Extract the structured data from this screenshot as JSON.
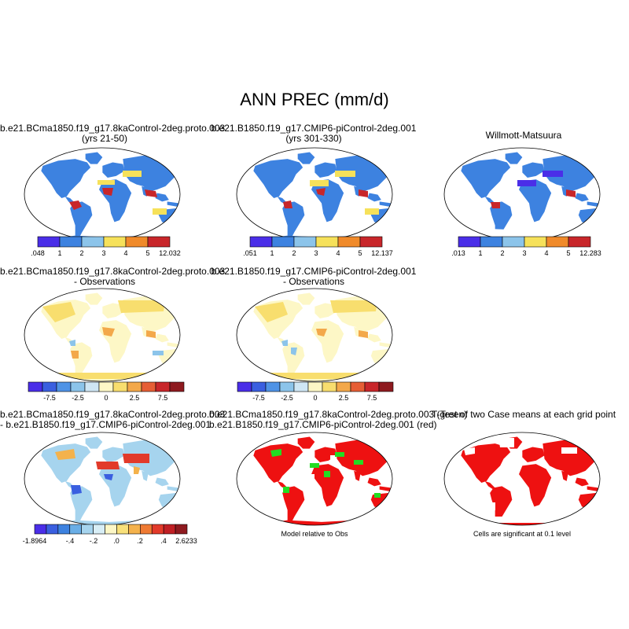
{
  "title": "ANN PREC (mm/d)",
  "panels": {
    "p1": {
      "line1": "b.e21.BCma1850.f19_g17.8kaControl-2deg.proto.003",
      "line2": "(yrs 21-50)",
      "colorbar": {
        "min_label": ".048",
        "max_label": "12.032",
        "ticks": [
          "1",
          "2",
          "3",
          "4",
          "5"
        ]
      }
    },
    "p2": {
      "line1": "b.e21.B1850.f19_g17.CMIP6-piControl-2deg.001",
      "line2": "(yrs 301-330)",
      "colorbar": {
        "min_label": ".051",
        "max_label": "12.137",
        "ticks": [
          "1",
          "2",
          "3",
          "4",
          "5"
        ]
      }
    },
    "p3": {
      "line1": "Willmott-Matsuura",
      "colorbar": {
        "min_label": ".013",
        "max_label": "12.283",
        "ticks": [
          "1",
          "2",
          "3",
          "4",
          "5"
        ]
      }
    },
    "p4": {
      "line1": "b.e21.BCma1850.f19_g17.8kaControl-2deg.proto.003",
      "line2": "- Observations",
      "colorbar": {
        "ticks": [
          "-7.5",
          "-2.5",
          "0",
          "2.5",
          "7.5"
        ]
      }
    },
    "p5": {
      "line1": "b.e21.B1850.f19_g17.CMIP6-piControl-2deg.001",
      "line2": "- Observations",
      "colorbar": {
        "ticks": [
          "-7.5",
          "-2.5",
          "0",
          "2.5",
          "7.5"
        ]
      }
    },
    "p6": {
      "line1": "b.e21.BCma1850.f19_g17.8kaControl-2deg.proto.003",
      "line2": "- b.e21.B1850.f19_g17.CMIP6-piControl-2deg.001",
      "colorbar": {
        "min_label": "-1.8964",
        "max_label": "2.6233",
        "ticks": [
          "-.4",
          "-.2",
          ".0",
          ".2",
          ".4"
        ]
      }
    },
    "p7": {
      "line1": "b.e21.BCma1850.f19_g17.8kaControl-2deg.proto.003 (green)",
      "line2": "b.e21.B1850.f19_g17.CMIP6-piControl-2deg.001 (red)",
      "note": "Model relative to Obs"
    },
    "p8": {
      "line1": "T-Test of two Case means at each grid point",
      "note": "Cells are significant at 0.1 level"
    }
  },
  "colors": {
    "abs_scale": [
      "#4a2ee8",
      "#3d82e0",
      "#8cc4ea",
      "#f6e15a",
      "#f08a2a",
      "#c8262a"
    ],
    "diff_scale": [
      "#4a2ee8",
      "#3a5fe0",
      "#4f93e6",
      "#8cc4ea",
      "#cfe6f4",
      "#fdf7c6",
      "#f8de6e",
      "#f3a84a",
      "#e65e35",
      "#c8262a",
      "#8e1a1f"
    ],
    "ratio_scale": [
      "#4a2ee8",
      "#3a5fe0",
      "#3d82e0",
      "#6aaee6",
      "#a6d4ee",
      "#d8eef6",
      "#fdf7c6",
      "#f8e07a",
      "#f4b24c",
      "#ef7a33",
      "#e23a2a",
      "#c01f24",
      "#8e1a1f"
    ],
    "sig_green": "#22dd22",
    "sig_red": "#ee1111"
  }
}
